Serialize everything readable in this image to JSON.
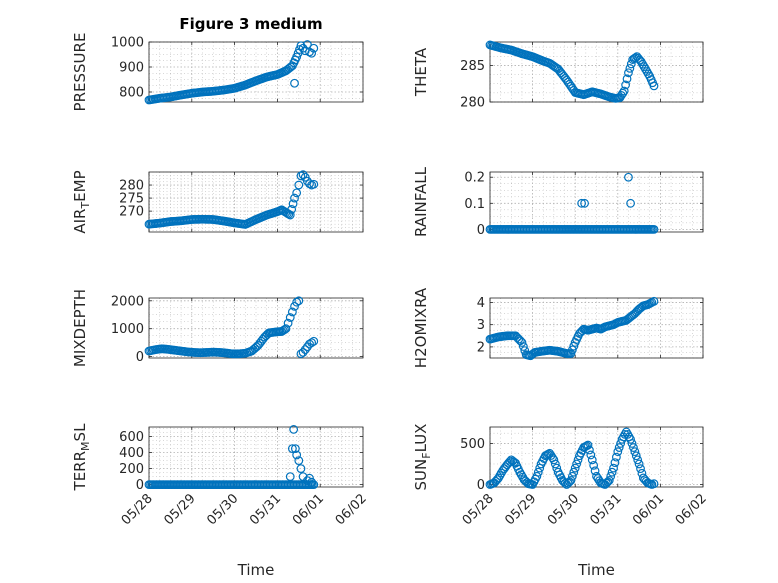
{
  "figure_title": "Figure 3 medium",
  "colors": {
    "marker": "#0072BD",
    "axis": "#262626",
    "grid": "#b0b0b0"
  },
  "chart_data": [
    {
      "type": "scatter",
      "ylabel": "PRESSURE",
      "xlabel": "",
      "xlim": [
        "05/28",
        "06/02"
      ],
      "ylim": [
        760,
        1000
      ],
      "yticks": [
        800,
        900,
        1000
      ],
      "grid": true,
      "xticks": [
        "05/28",
        "05/29",
        "05/30",
        "05/31",
        "06/01",
        "06/02"
      ],
      "show_xticklabels": false,
      "marker": "open-circle",
      "density": "dense",
      "x": [
        0.0,
        0.25,
        0.5,
        0.75,
        1.0,
        1.25,
        1.5,
        1.75,
        2.0,
        2.25,
        2.5,
        2.75,
        3.0,
        3.2,
        3.35,
        3.45,
        3.55,
        3.6,
        3.65,
        3.7,
        3.75,
        3.8,
        3.85
      ],
      "y": [
        768,
        775,
        780,
        788,
        795,
        800,
        803,
        808,
        815,
        828,
        845,
        860,
        870,
        885,
        905,
        940,
        985,
        975,
        965,
        990,
        960,
        955,
        975
      ],
      "extra_points": {
        "x": [
          3.4
        ],
        "y": [
          835
        ]
      }
    },
    {
      "type": "scatter",
      "ylabel": "THETA",
      "xlabel": "",
      "xlim": [
        "05/28",
        "06/02"
      ],
      "ylim": [
        280,
        288.2
      ],
      "yticks": [
        280,
        285
      ],
      "grid": true,
      "xticks": [
        "05/28",
        "05/29",
        "05/30",
        "05/31",
        "06/01",
        "06/02"
      ],
      "show_xticklabels": false,
      "marker": "open-circle",
      "density": "dense",
      "x": [
        0.0,
        0.25,
        0.5,
        0.75,
        1.0,
        1.25,
        1.4,
        1.6,
        1.8,
        2.0,
        2.2,
        2.4,
        2.6,
        2.8,
        2.95,
        3.05,
        3.15,
        3.25,
        3.35,
        3.45,
        3.55,
        3.65,
        3.75,
        3.85
      ],
      "y": [
        287.8,
        287.4,
        287.1,
        286.6,
        286.2,
        285.6,
        285.3,
        284.5,
        283.0,
        281.3,
        281.0,
        281.4,
        281.1,
        280.7,
        280.5,
        280.6,
        281.5,
        284.0,
        285.8,
        286.2,
        285.5,
        284.5,
        283.5,
        282.2
      ]
    },
    {
      "type": "scatter",
      "ylabel": "AIR_TEMP",
      "xlabel": "",
      "xlim": [
        "05/28",
        "06/02"
      ],
      "ylim": [
        262,
        285
      ],
      "yticks": [
        270,
        275,
        280
      ],
      "grid": true,
      "xticks": [
        "05/28",
        "05/29",
        "05/30",
        "05/31",
        "06/01",
        "06/02"
      ],
      "show_xticklabels": false,
      "marker": "open-circle",
      "density": "dense",
      "x": [
        0.0,
        0.25,
        0.5,
        0.75,
        1.0,
        1.25,
        1.5,
        1.75,
        2.0,
        2.25,
        2.5,
        2.75,
        3.0,
        3.1,
        3.2,
        3.3,
        3.4,
        3.45,
        3.5,
        3.55,
        3.6,
        3.65,
        3.7,
        3.75,
        3.8,
        3.85
      ],
      "y": [
        265.0,
        265.4,
        266.0,
        266.3,
        266.8,
        266.9,
        266.8,
        266.2,
        265.5,
        264.9,
        266.8,
        268.5,
        269.8,
        270.5,
        269.5,
        268.5,
        275.0,
        277.0,
        280.0,
        283.5,
        284.0,
        283.0,
        281.5,
        280.5,
        280.0,
        280.3
      ]
    },
    {
      "type": "scatter",
      "ylabel": "RAINFALL",
      "xlabel": "",
      "xlim": [
        "05/28",
        "06/02"
      ],
      "ylim": [
        -0.01,
        0.22
      ],
      "yticks": [
        0,
        0.1,
        0.2
      ],
      "ytick_labels": [
        "0",
        "0.1",
        "0.2"
      ],
      "grid": true,
      "xticks": [
        "05/28",
        "05/29",
        "05/30",
        "05/31",
        "06/01",
        "06/02"
      ],
      "show_xticklabels": false,
      "marker": "open-circle",
      "density": "dense",
      "baseline": {
        "x_from": 0.0,
        "x_to": 3.85,
        "y": 0
      },
      "x": [
        2.15,
        2.22,
        3.25,
        3.3
      ],
      "y": [
        0.1,
        0.1,
        0.2,
        0.1
      ]
    },
    {
      "type": "scatter",
      "ylabel": "MIXDEPTH",
      "xlabel": "",
      "xlim": [
        "05/28",
        "06/02"
      ],
      "ylim": [
        -50,
        2100
      ],
      "yticks": [
        0,
        1000,
        2000
      ],
      "grid": true,
      "xticks": [
        "05/28",
        "05/29",
        "05/30",
        "05/31",
        "06/01",
        "06/02"
      ],
      "show_xticklabels": false,
      "marker": "open-circle",
      "density": "dense",
      "x": [
        0.0,
        0.15,
        0.3,
        0.45,
        0.6,
        0.75,
        0.9,
        1.05,
        1.2,
        1.35,
        1.5,
        1.65,
        1.8,
        1.95,
        2.1,
        2.25,
        2.4,
        2.55,
        2.7,
        2.8,
        2.9,
        3.0,
        3.1,
        3.2,
        3.25,
        3.3,
        3.35,
        3.4,
        3.45,
        3.5,
        3.55,
        3.6,
        3.65,
        3.7,
        3.75,
        3.8,
        3.85
      ],
      "y": [
        200,
        250,
        280,
        260,
        230,
        200,
        170,
        150,
        140,
        150,
        160,
        150,
        130,
        100,
        100,
        120,
        200,
        400,
        700,
        850,
        870,
        890,
        900,
        1000,
        1200,
        1400,
        1600,
        1800,
        1950,
        2000,
        100,
        150,
        250,
        350,
        450,
        500,
        550
      ]
    },
    {
      "type": "scatter",
      "ylabel": "H2OMIXRA",
      "xlabel": "",
      "xlim": [
        "05/28",
        "06/02"
      ],
      "ylim": [
        1.5,
        4.2
      ],
      "yticks": [
        2,
        3,
        4
      ],
      "grid": true,
      "xticks": [
        "05/28",
        "05/29",
        "05/30",
        "05/31",
        "06/01",
        "06/02"
      ],
      "show_xticklabels": false,
      "marker": "open-circle",
      "density": "dense",
      "x": [
        0.0,
        0.2,
        0.4,
        0.6,
        0.75,
        0.85,
        0.95,
        1.05,
        1.2,
        1.4,
        1.6,
        1.8,
        1.9,
        2.0,
        2.1,
        2.2,
        2.3,
        2.4,
        2.5,
        2.6,
        2.7,
        2.8,
        2.9,
        3.0,
        3.1,
        3.2,
        3.3,
        3.4,
        3.5,
        3.6,
        3.7,
        3.8,
        3.85
      ],
      "y": [
        2.35,
        2.45,
        2.5,
        2.5,
        2.2,
        1.65,
        1.6,
        1.75,
        1.8,
        1.85,
        1.8,
        1.7,
        1.7,
        2.2,
        2.6,
        2.8,
        2.75,
        2.8,
        2.85,
        2.8,
        2.9,
        2.95,
        3.0,
        3.1,
        3.15,
        3.2,
        3.35,
        3.5,
        3.7,
        3.85,
        3.9,
        4.0,
        4.05
      ]
    },
    {
      "type": "scatter",
      "ylabel": "TERR_MSL",
      "xlabel": "Time",
      "xlim": [
        "05/28",
        "06/02"
      ],
      "ylim": [
        -30,
        720
      ],
      "yticks": [
        0,
        200,
        400,
        600
      ],
      "grid": true,
      "xticks": [
        "05/28",
        "05/29",
        "05/30",
        "05/31",
        "06/01",
        "06/02"
      ],
      "show_xticklabels": true,
      "marker": "open-circle",
      "density": "dense",
      "baseline": {
        "x_from": 0.0,
        "x_to": 3.85,
        "y": 0
      },
      "x": [
        3.3,
        3.35,
        3.38,
        3.42,
        3.45,
        3.5,
        3.55,
        3.6,
        3.7,
        3.75,
        3.8
      ],
      "y": [
        100,
        450,
        690,
        450,
        370,
        300,
        200,
        100,
        50,
        80,
        30
      ]
    },
    {
      "type": "scatter",
      "ylabel": "SUN_FLUX",
      "xlabel": "Time",
      "xlim": [
        "05/28",
        "06/02"
      ],
      "ylim": [
        -30,
        700
      ],
      "yticks": [
        0,
        500
      ],
      "grid": true,
      "xticks": [
        "05/28",
        "05/29",
        "05/30",
        "05/31",
        "06/01",
        "06/02"
      ],
      "show_xticklabels": true,
      "marker": "open-circle",
      "density": "dense",
      "x": [
        0.0,
        0.1,
        0.2,
        0.3,
        0.4,
        0.5,
        0.6,
        0.7,
        0.8,
        0.9,
        1.0,
        1.1,
        1.2,
        1.3,
        1.4,
        1.5,
        1.6,
        1.7,
        1.8,
        1.9,
        2.0,
        2.1,
        2.2,
        2.3,
        2.4,
        2.5,
        2.6,
        2.7,
        2.8,
        2.9,
        3.0,
        3.1,
        3.2,
        3.3,
        3.4,
        3.5,
        3.6,
        3.7,
        3.8,
        3.85
      ],
      "y": [
        0,
        20,
        80,
        170,
        240,
        300,
        260,
        150,
        60,
        10,
        0,
        100,
        250,
        350,
        380,
        300,
        150,
        50,
        0,
        50,
        200,
        350,
        450,
        480,
        300,
        100,
        20,
        0,
        50,
        200,
        400,
        550,
        640,
        550,
        400,
        250,
        80,
        20,
        0,
        10
      ]
    }
  ]
}
